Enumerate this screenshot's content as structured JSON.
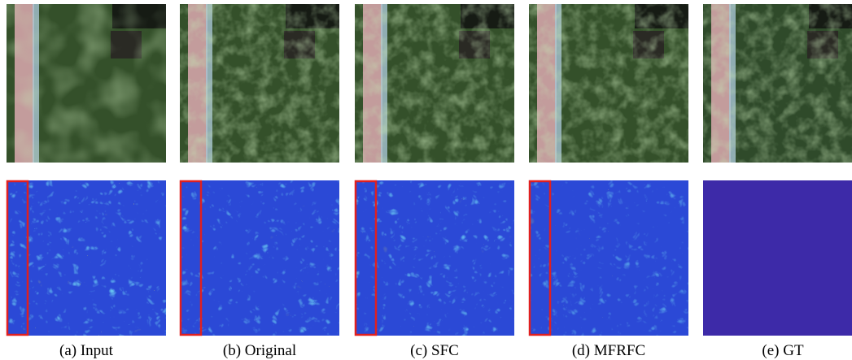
{
  "captions": [
    "(a) Input",
    "(b) Original",
    "(c) SFC",
    "(d) MFRFC",
    "(e) GT"
  ]
}
